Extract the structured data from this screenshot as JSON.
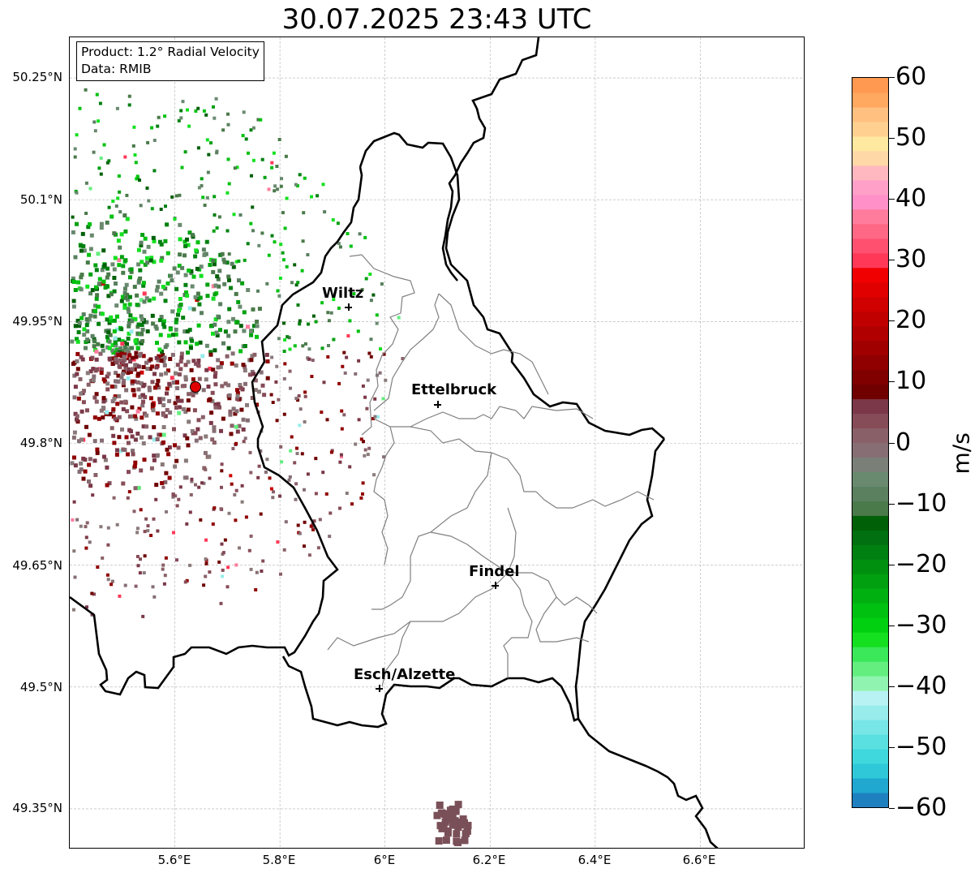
{
  "title": "30.07.2025 23:43 UTC",
  "info": {
    "product": "Product: 1.2° Radial Velocity",
    "data": "Data: RMIB"
  },
  "lat_ticks": [
    {
      "label": "50.25°N",
      "value": 50.25
    },
    {
      "label": "50.1°N",
      "value": 50.1
    },
    {
      "label": "49.95°N",
      "value": 49.95
    },
    {
      "label": "49.8°N",
      "value": 49.8
    },
    {
      "label": "49.65°N",
      "value": 49.65
    },
    {
      "label": "49.5°N",
      "value": 49.5
    },
    {
      "label": "49.35°N",
      "value": 49.35
    }
  ],
  "lon_ticks": [
    {
      "label": "5.6°E",
      "value": 5.6
    },
    {
      "label": "5.8°E",
      "value": 5.8
    },
    {
      "label": "6°E",
      "value": 6.0
    },
    {
      "label": "6.2°E",
      "value": 6.2
    },
    {
      "label": "6.4°E",
      "value": 6.4
    },
    {
      "label": "6.6°E",
      "value": 6.6
    }
  ],
  "extent": {
    "lon_min": 5.4,
    "lon_max": 6.8,
    "lat_min": 49.3,
    "lat_max": 50.3
  },
  "cities": [
    {
      "name": "Wiltz",
      "lon": 5.935,
      "lat": 49.965
    },
    {
      "name": "Ettelbruck",
      "lon": 6.104,
      "lat": 49.846
    },
    {
      "name": "Findel",
      "lon": 6.211,
      "lat": 49.626
    },
    {
      "name": "Esch/Alzette",
      "lon": 5.99,
      "lat": 49.496
    }
  ],
  "radar_site": {
    "lon": 5.505,
    "lat": 49.914
  },
  "colorbar": {
    "label": "m/s",
    "min": -60,
    "max": 60,
    "ticks": [
      {
        "label": "60",
        "value": 60
      },
      {
        "label": "50",
        "value": 50
      },
      {
        "label": "40",
        "value": 40
      },
      {
        "label": "30",
        "value": 30
      },
      {
        "label": "20",
        "value": 20
      },
      {
        "label": "10",
        "value": 10
      },
      {
        "label": "0",
        "value": 0
      },
      {
        "label": "−10",
        "value": -10
      },
      {
        "label": "−20",
        "value": -20
      },
      {
        "label": "−30",
        "value": -30
      },
      {
        "label": "−40",
        "value": -40
      },
      {
        "label": "−50",
        "value": -50
      },
      {
        "label": "−60",
        "value": -60
      }
    ],
    "colors": [
      "#1f80c0",
      "#20a8d0",
      "#2ec8d8",
      "#3fd8dc",
      "#5ae0e0",
      "#78e6e6",
      "#98ecec",
      "#b8f2f2",
      "#90f4b0",
      "#64ee80",
      "#3ae85a",
      "#14e020",
      "#00d010",
      "#00c010",
      "#00b010",
      "#00a010",
      "#009010",
      "#008010",
      "#007010",
      "#006008",
      "#4a7a4a",
      "#5a8060",
      "#6a8a70",
      "#7a8078",
      "#866e74",
      "#8a6068",
      "#864c58",
      "#7a3848",
      "#700000",
      "#800000",
      "#900000",
      "#a00000",
      "#b00000",
      "#c00000",
      "#d00000",
      "#e00000",
      "#f00000",
      "#ff3858",
      "#ff5070",
      "#ff6884",
      "#ff7c9c",
      "#ff90c8",
      "#ffa0c8",
      "#ffb8c0",
      "#ffd8a8",
      "#ffe8a0",
      "#ffd090",
      "#ffc080",
      "#ffa860",
      "#ff9850"
    ]
  }
}
